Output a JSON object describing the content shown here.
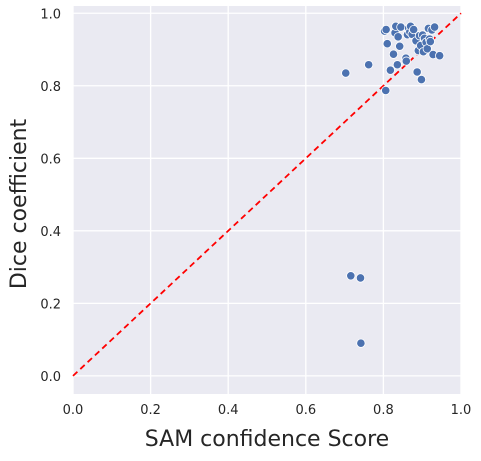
{
  "chart_data": {
    "type": "scatter",
    "title": "",
    "xlabel": "SAM confidence Score",
    "ylabel": "Dice coefficient",
    "xlim": [
      0.0,
      1.0
    ],
    "ylim": [
      -0.05,
      1.02
    ],
    "x_ticks": [
      "0.0",
      "0.2",
      "0.4",
      "0.6",
      "0.8",
      "1.0"
    ],
    "y_ticks": [
      "0.0",
      "0.2",
      "0.4",
      "0.6",
      "0.8",
      "1.0"
    ],
    "grid": true,
    "background": "#eaeaf2",
    "point_color": "#4c72b0",
    "reference_line": {
      "style": "dashed",
      "color": "#ff0000",
      "from": [
        0,
        0
      ],
      "to": [
        1,
        1
      ]
    },
    "points": [
      [
        0.703,
        0.835
      ],
      [
        0.762,
        0.858
      ],
      [
        0.806,
        0.787
      ],
      [
        0.803,
        0.951
      ],
      [
        0.807,
        0.955
      ],
      [
        0.81,
        0.916
      ],
      [
        0.818,
        0.843
      ],
      [
        0.826,
        0.887
      ],
      [
        0.83,
        0.946
      ],
      [
        0.832,
        0.964
      ],
      [
        0.836,
        0.858
      ],
      [
        0.838,
        0.935
      ],
      [
        0.842,
        0.909
      ],
      [
        0.845,
        0.962
      ],
      [
        0.858,
        0.876
      ],
      [
        0.859,
        0.868
      ],
      [
        0.862,
        0.941
      ],
      [
        0.865,
        0.958
      ],
      [
        0.868,
        0.949
      ],
      [
        0.87,
        0.964
      ],
      [
        0.874,
        0.942
      ],
      [
        0.878,
        0.955
      ],
      [
        0.884,
        0.924
      ],
      [
        0.887,
        0.838
      ],
      [
        0.89,
        0.897
      ],
      [
        0.893,
        0.938
      ],
      [
        0.896,
        0.911
      ],
      [
        0.898,
        0.817
      ],
      [
        0.901,
        0.94
      ],
      [
        0.903,
        0.894
      ],
      [
        0.906,
        0.931
      ],
      [
        0.91,
        0.92
      ],
      [
        0.913,
        0.902
      ],
      [
        0.916,
        0.958
      ],
      [
        0.919,
        0.929
      ],
      [
        0.921,
        0.922
      ],
      [
        0.925,
        0.954
      ],
      [
        0.928,
        0.886
      ],
      [
        0.932,
        0.962
      ],
      [
        0.945,
        0.883
      ],
      [
        0.716,
        0.276
      ],
      [
        0.741,
        0.27
      ],
      [
        0.742,
        0.09
      ]
    ]
  }
}
